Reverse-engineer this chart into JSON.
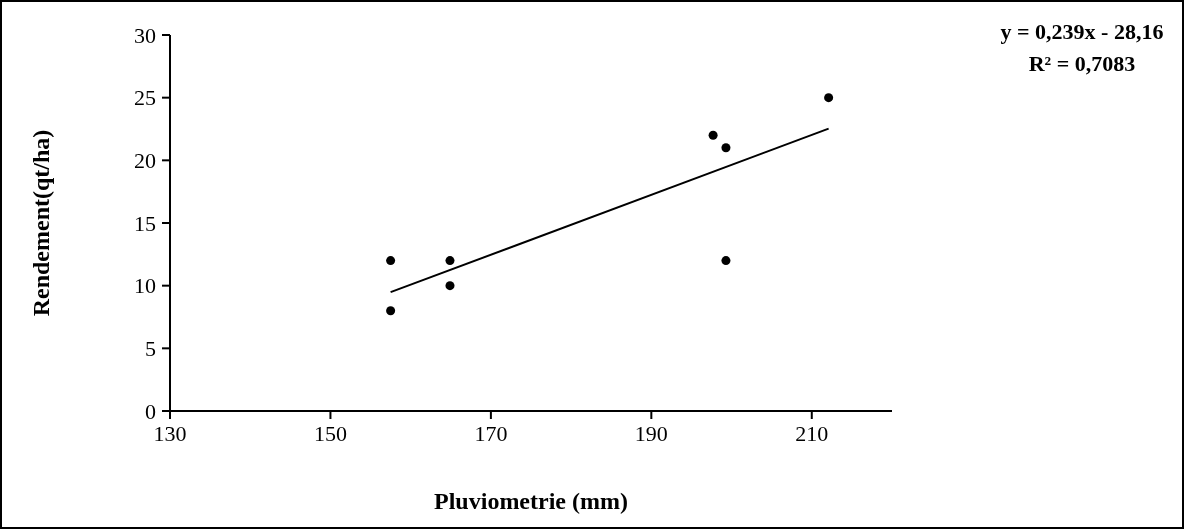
{
  "chart_data": {
    "type": "scatter",
    "xlabel": "Pluviometrie (mm)",
    "ylabel": "Rendement(qt/ha)",
    "xlim": [
      130,
      220
    ],
    "xticks": [
      130,
      150,
      170,
      190,
      210
    ],
    "ylim": [
      0,
      30
    ],
    "yticks": [
      0,
      5,
      10,
      15,
      20,
      25,
      30
    ],
    "grid": false,
    "legend": false,
    "series": [
      {
        "color": "#000000",
        "marker": "circle",
        "x": [
          157.5,
          157.5,
          164.9,
          164.9,
          197.7,
          199.3,
          199.3,
          212.1
        ],
        "values": [
          12,
          8,
          12,
          10,
          22,
          21,
          12,
          25
        ]
      },
      {
        "type": "line",
        "color": "#000000",
        "line_style": "solid",
        "x": [
          157.5,
          212.1
        ],
        "values": [
          9.48,
          22.53
        ]
      }
    ],
    "annotations": [
      "y = 0,239x - 28,16",
      "R² = 0,7083"
    ]
  }
}
